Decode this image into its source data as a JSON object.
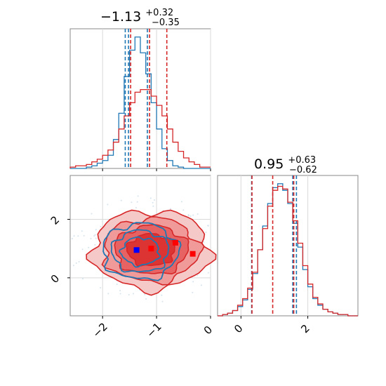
{
  "chart_data": [
    {
      "type": "histogram",
      "panel": "top-left",
      "title": {
        "median": "−1.13",
        "plus": "+0.32",
        "minus": "−0.35"
      },
      "xlim": [
        -2.6,
        0.0
      ],
      "grid": true,
      "x_ticks": [
        -2,
        -1,
        0
      ],
      "bins_x": [
        -2.6,
        -2.5,
        -2.4,
        -2.3,
        -2.2,
        -2.1,
        -2.0,
        -1.9,
        -1.8,
        -1.7,
        -1.6,
        -1.5,
        -1.4,
        -1.3,
        -1.2,
        -1.1,
        -1.0,
        -0.9,
        -0.8,
        -0.7,
        -0.6,
        -0.5,
        -0.4,
        -0.3,
        -0.2,
        -0.1,
        0.0
      ],
      "series": [
        {
          "color": "#1f77b4",
          "counts": [
            0,
            0,
            0,
            0.01,
            0.02,
            0.04,
            0.06,
            0.1,
            0.22,
            0.42,
            0.7,
            0.9,
            1.0,
            0.88,
            0.72,
            0.5,
            0.3,
            0.15,
            0.06,
            0.02,
            0.01,
            0,
            0,
            0,
            0,
            0
          ],
          "quantiles": [
            -1.58,
            -1.52,
            -1.17
          ]
        },
        {
          "color": "#d62728",
          "counts": [
            0.01,
            0.02,
            0.02,
            0.03,
            0.05,
            0.07,
            0.1,
            0.14,
            0.2,
            0.3,
            0.4,
            0.5,
            0.58,
            0.6,
            0.6,
            0.55,
            0.48,
            0.4,
            0.3,
            0.2,
            0.13,
            0.08,
            0.05,
            0.03,
            0.01,
            0.01
          ],
          "quantiles": [
            -1.48,
            -1.13,
            -0.81
          ]
        }
      ]
    },
    {
      "type": "contour",
      "panel": "bottom-left",
      "xlim": [
        -2.6,
        0.0
      ],
      "ylim": [
        -1.3,
        3.5
      ],
      "grid": true,
      "x_ticks": [
        -2,
        -1,
        0
      ],
      "y_ticks": [
        0,
        2
      ],
      "series": [
        {
          "color": "#d62728",
          "filled": true,
          "center": [
            -1.1,
            0.95
          ],
          "levels_sigma": [
            0.17,
            0.26,
            0.34,
            0.42
          ],
          "markers": [
            [
              -1.1,
              1.0
            ],
            [
              -0.65,
              1.2
            ],
            [
              -0.33,
              0.82
            ]
          ]
        },
        {
          "color": "#1f77b4",
          "filled": false,
          "center": [
            -1.3,
            0.9
          ],
          "levels_sigma": [
            0.14,
            0.21,
            0.28
          ],
          "markers": []
        }
      ],
      "truth_marker": {
        "color": "#0000ff",
        "x": -1.37,
        "y": 0.95
      }
    },
    {
      "type": "histogram",
      "panel": "bottom-right",
      "title": {
        "median": "0.95",
        "plus": "+0.63",
        "minus": "−0.62"
      },
      "xlim": [
        -0.7,
        3.5
      ],
      "grid": true,
      "x_ticks": [
        0,
        2
      ],
      "bins_x": [
        -0.7,
        -0.55,
        -0.4,
        -0.25,
        -0.1,
        0.05,
        0.2,
        0.35,
        0.5,
        0.65,
        0.8,
        0.95,
        1.1,
        1.25,
        1.4,
        1.55,
        1.7,
        1.85,
        2.0,
        2.15,
        2.3,
        2.45,
        2.6,
        2.75,
        2.9,
        3.05,
        3.2,
        3.35,
        3.5
      ],
      "series": [
        {
          "color": "#1f77b4",
          "counts": [
            0,
            0.01,
            0.02,
            0.04,
            0.07,
            0.12,
            0.2,
            0.32,
            0.5,
            0.68,
            0.85,
            0.97,
            1.0,
            0.95,
            0.85,
            0.7,
            0.52,
            0.35,
            0.22,
            0.13,
            0.08,
            0.05,
            0.03,
            0.02,
            0.01,
            0.01,
            0,
            0
          ],
          "quantiles": [
            0.32,
            1.55,
            1.66
          ]
        },
        {
          "color": "#d62728",
          "counts": [
            0,
            0.01,
            0.02,
            0.04,
            0.08,
            0.13,
            0.21,
            0.33,
            0.5,
            0.66,
            0.83,
            0.95,
            0.98,
            0.96,
            0.86,
            0.72,
            0.55,
            0.38,
            0.24,
            0.14,
            0.09,
            0.05,
            0.03,
            0.02,
            0.01,
            0.01,
            0,
            0
          ],
          "quantiles": [
            0.33,
            0.95,
            1.58
          ]
        }
      ]
    }
  ]
}
